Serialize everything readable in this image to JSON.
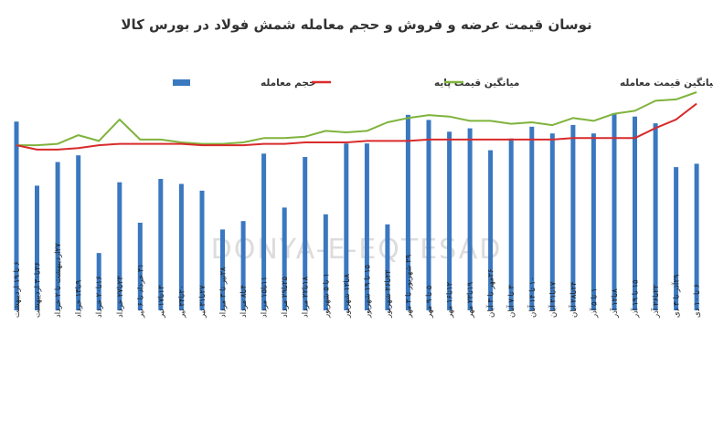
{
  "chart_data": {
    "type": "bar",
    "title": "نوسان قیمت عرضه و فروش و حجم معامله شمش فولاد در بورس کالا",
    "watermark": "DONYA-E-EQTESAD",
    "legend_placement": "top",
    "grid": false,
    "series_colors": {
      "volume": "#3a78c0",
      "base_price": "#d92b2b",
      "trade_price": "#7fb33c"
    },
    "categories": [
      "۶ تا ۱۹ اردیبهشت",
      "۲۶تا۳۰ اردیبهشت",
      "۲۷اردیبهشت تا ۲ خرداد",
      "۹تا۱۳ خرداد",
      "۱۶تا۲۰ خرداد",
      "۲۳تا۲۷ خرداد",
      "۳۱ خرداد تا ۶ تیر",
      "۱۳تا۱۷ تیر",
      "۲۰تا۲۴ تیر",
      "۲۷تا۳۱ تیر",
      "۲۸تیر تا ۳ مرداد",
      "۴تا۸ مرداد",
      "۱۱تا۱۵ مرداد",
      "۲۵تا۲۹ مرداد",
      "۱۸تا۲۲ مرداد",
      "۱ تا ۵ شهریور",
      "۸تا۱۲ شهریور",
      "۱۵ تا ۱۹ شهریور",
      "۲۲تا۲۶ شهریور",
      "۲۹ شهریور تا ۲ مهر",
      "۵ تا ۹ مهر",
      "۱۲تا۱۶ مهر",
      "۱۹تا۲۳ مهر",
      "۲۶مهر تا ۳ آبان",
      "۳ تا ۷ آبان",
      "۱۰ تا ۱۴ آبان",
      "۱۷تا۲۱ آبان",
      "۲۴تا۲۸ آبان",
      "۱ تا ۵ آذر",
      "۸تا۱۲ آذر",
      "۱۵ تا ۱۹ آذر",
      "۲۲تا۲۶ آذر",
      "۲۹آذر تا ۳ دی",
      "۶ تا ۱۰ دی"
    ],
    "series": [
      {
        "name": "حجم معامله",
        "kind": "bar",
        "values": [
          112,
          74,
          88,
          92,
          34,
          76,
          52,
          78,
          75,
          71,
          48,
          53,
          93,
          61,
          91,
          57,
          99,
          99,
          51,
          116,
          113,
          106,
          108,
          95,
          102,
          109,
          105,
          110,
          105,
          117,
          115,
          111,
          85,
          87
        ]
      },
      {
        "name": "میانگین قیمت پایه",
        "kind": "line",
        "values": [
          106,
          103,
          103,
          104,
          106,
          107,
          107,
          107,
          107,
          106,
          106,
          106,
          107,
          107,
          108,
          108,
          108,
          109,
          109,
          109,
          110,
          110,
          110,
          110,
          110,
          110,
          110,
          111,
          111,
          111,
          111,
          118,
          124,
          135
        ]
      },
      {
        "name": "میانگین قیمت معامله",
        "kind": "line",
        "values": [
          106,
          106,
          107,
          113,
          109,
          124,
          110,
          110,
          108,
          107,
          107,
          108,
          111,
          111,
          112,
          116,
          115,
          116,
          122,
          125,
          127,
          126,
          123,
          123,
          121,
          122,
          120,
          125,
          123,
          128,
          130,
          137,
          138,
          143
        ]
      }
    ]
  }
}
